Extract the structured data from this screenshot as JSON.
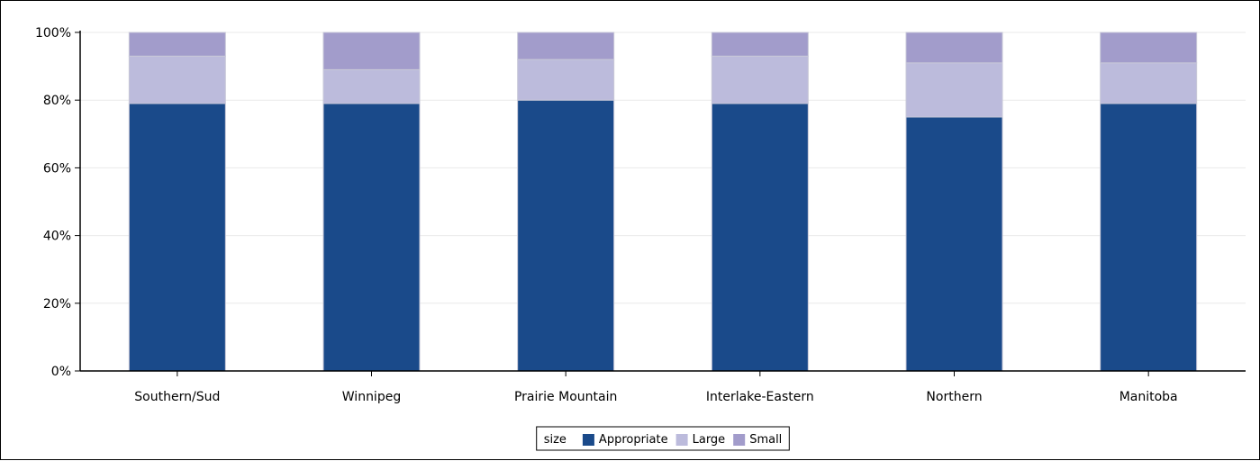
{
  "chart_data": {
    "type": "bar",
    "stacked": true,
    "orientation": "vertical",
    "categories": [
      "Southern/Sud",
      "Winnipeg",
      "Prairie Mountain",
      "Interlake-Eastern",
      "Northern",
      "Manitoba"
    ],
    "series": [
      {
        "name": "Appropriate",
        "color": "#1a4a8a",
        "values": [
          79,
          79,
          80,
          79,
          75,
          79
        ]
      },
      {
        "name": "Large",
        "color": "#bcbbdc",
        "values": [
          14,
          10,
          12,
          14,
          16,
          12
        ]
      },
      {
        "name": "Small",
        "color": "#a29ccb",
        "values": [
          7,
          11,
          8,
          7,
          9,
          9
        ]
      }
    ],
    "y_ticks": [
      "0%",
      "20%",
      "40%",
      "60%",
      "80%",
      "100%"
    ],
    "y_tick_values": [
      0,
      20,
      40,
      60,
      80,
      100
    ],
    "ylim": [
      0,
      100
    ],
    "grid": true,
    "legend": {
      "title": "size",
      "placement": "bottom-center"
    },
    "title": "",
    "xlabel": "",
    "ylabel": ""
  }
}
